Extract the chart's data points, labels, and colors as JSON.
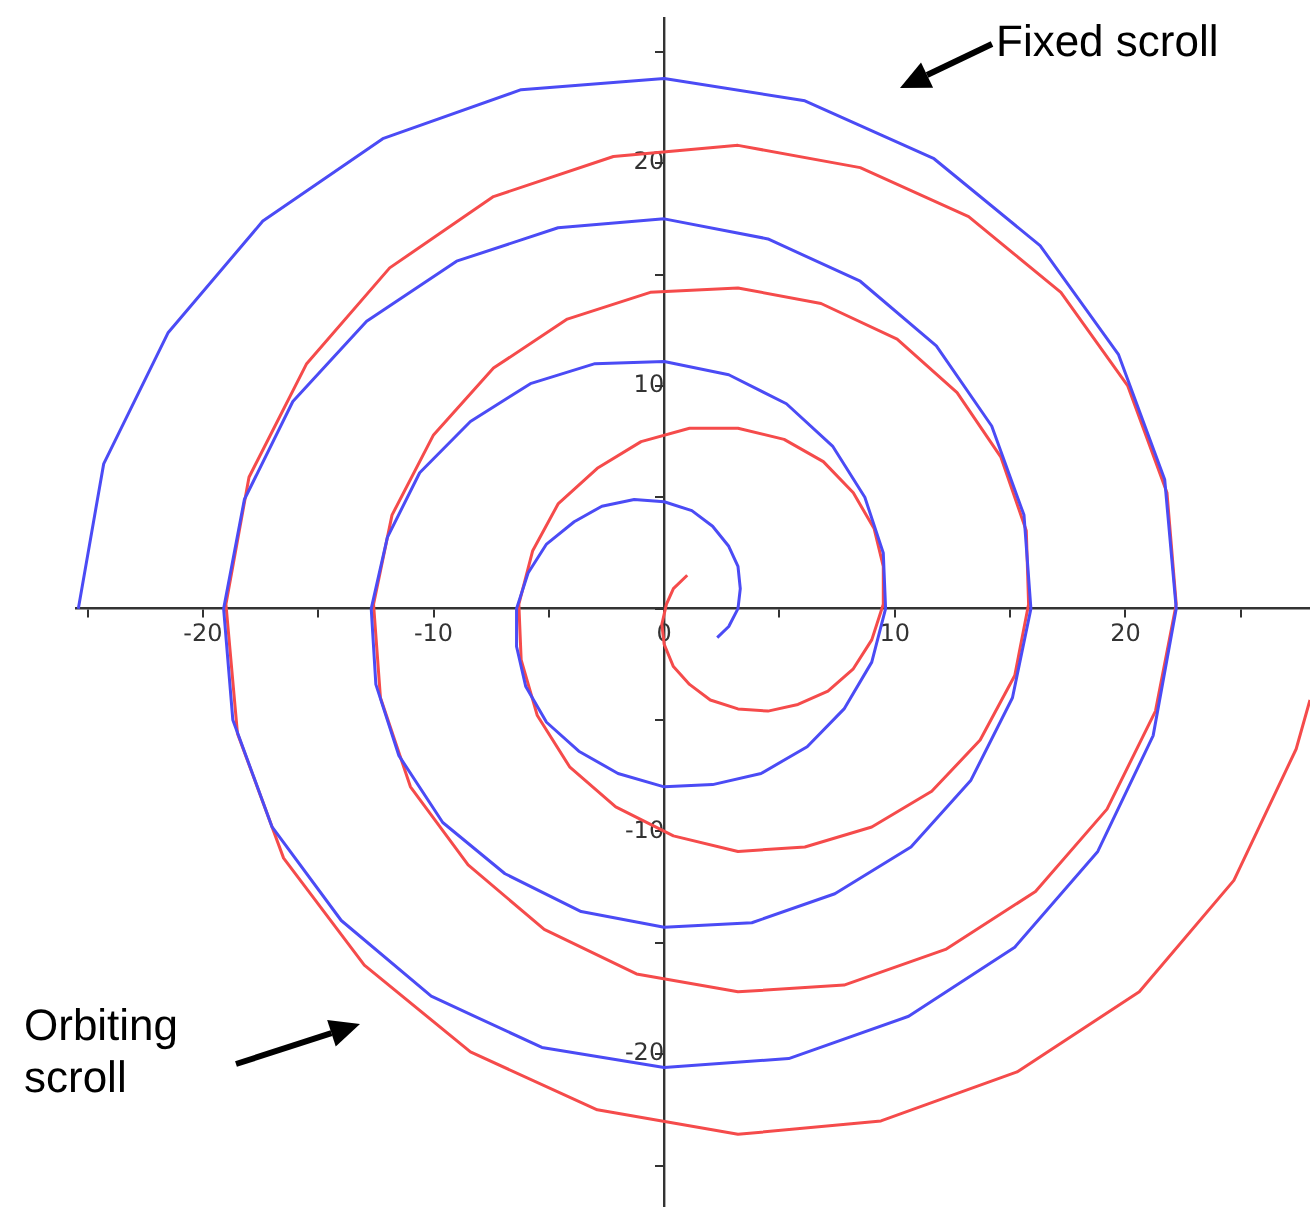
{
  "chart_data": {
    "type": "line",
    "marker": "none",
    "annotations": [
      "Fixed scroll",
      "Orbiting scroll"
    ],
    "xlim": [
      -25.5,
      28
    ],
    "ylim": [
      -26.8,
      26.5
    ],
    "xticks": [
      {
        "value": -25,
        "label": null
      },
      -20,
      {
        "value": -15,
        "label": null
      },
      -10,
      {
        "value": -5,
        "label": null
      },
      0,
      {
        "value": 5,
        "label": null
      },
      10,
      {
        "value": 15,
        "label": null
      },
      20,
      {
        "value": 25,
        "label": null
      }
    ],
    "yticks": [
      {
        "value": -25,
        "label": null
      },
      -20,
      {
        "value": -15,
        "label": null
      },
      -10,
      {
        "value": -5,
        "label": null
      },
      {
        "value": 0,
        "label": null
      },
      {
        "value": 5,
        "label": null
      },
      10,
      {
        "value": 15,
        "label": null
      },
      20,
      {
        "value": 25,
        "label": null
      }
    ],
    "series": [
      {
        "color": "#4b4bf5",
        "x": [
          2.3,
          2.8,
          3.2,
          3.3,
          3.2,
          2.8,
          2.1,
          1.2,
          0,
          -1.3,
          -2.7,
          -3.9,
          -5.1,
          -5.9,
          -6.4,
          -6.4,
          -6.0,
          -5.1,
          -3.7,
          -2.0,
          0,
          2.1,
          4.2,
          6.2,
          7.8,
          9.0,
          9.6,
          9.5,
          8.7,
          7.3,
          5.3,
          2.8,
          0,
          -3.0,
          -5.8,
          -8.4,
          -10.6,
          -12.0,
          -12.7,
          -12.5,
          -11.5,
          -9.6,
          -6.9,
          -3.6,
          0,
          3.8,
          7.4,
          10.7,
          13.3,
          15.1,
          15.9,
          15.6,
          14.2,
          11.8,
          8.5,
          4.5,
          0,
          -4.6,
          -9.0,
          -12.9,
          -16.1,
          -18.2,
          -19.1,
          -18.7,
          -17.0,
          -14.0,
          -10.1,
          -5.3,
          0,
          5.4,
          10.6,
          15.2,
          18.8,
          21.2,
          22.2,
          21.7,
          19.7,
          16.3,
          11.7,
          6.1,
          0,
          -6.2,
          -12.2,
          -17.4,
          -21.5,
          -24.3,
          -25.4
        ],
        "values": [
          -1.3,
          -0.8,
          0,
          0.9,
          1.9,
          2.8,
          3.7,
          4.4,
          4.8,
          4.9,
          4.6,
          3.9,
          2.9,
          1.6,
          0,
          -1.7,
          -3.5,
          -5.1,
          -6.4,
          -7.4,
          -8.0,
          -7.9,
          -7.4,
          -6.2,
          -4.5,
          -2.4,
          0,
          2.5,
          5.0,
          7.3,
          9.2,
          10.5,
          11.1,
          11.0,
          10.1,
          8.4,
          6.1,
          3.2,
          0,
          -3.4,
          -6.6,
          -9.6,
          -11.9,
          -13.6,
          -14.3,
          -14.1,
          -12.8,
          -10.7,
          -7.7,
          -4.0,
          0,
          4.2,
          8.2,
          11.8,
          14.7,
          16.6,
          17.5,
          17.1,
          15.6,
          12.9,
          9.3,
          4.9,
          0,
          -5.0,
          -9.8,
          -14.0,
          -17.4,
          -19.7,
          -20.6,
          -20.2,
          -18.3,
          -15.2,
          -10.9,
          -5.7,
          0,
          5.8,
          11.4,
          16.3,
          20.2,
          22.8,
          23.8,
          23.3,
          21.1,
          17.4,
          12.4,
          6.5,
          0
        ]
      },
      {
        "color": "#f54b4b",
        "x": [
          1.0,
          0.4,
          0.1,
          -0.1,
          0.0,
          0.4,
          1.1,
          2.0,
          3.2,
          4.5,
          5.8,
          7.1,
          8.2,
          9.0,
          9.5,
          9.5,
          9.1,
          8.2,
          6.9,
          5.2,
          3.2,
          1.1,
          -1.0,
          -2.9,
          -4.6,
          -5.7,
          -6.3,
          -6.2,
          -5.5,
          -4.1,
          -2.1,
          0.4,
          3.2,
          6.1,
          9.0,
          11.6,
          13.7,
          15.2,
          15.8,
          15.7,
          14.6,
          12.7,
          10.1,
          6.8,
          3.2,
          -0.6,
          -4.2,
          -7.4,
          -10.0,
          -11.8,
          -12.6,
          -12.3,
          -11.0,
          -8.5,
          -5.2,
          -1.2,
          3.2,
          7.8,
          12.2,
          16.1,
          19.2,
          21.3,
          22.2,
          21.8,
          20.1,
          17.2,
          13.2,
          8.5,
          3.2,
          -2.2,
          -7.4,
          -11.9,
          -15.5,
          -18.0,
          -19.0,
          -18.5,
          -16.5,
          -13.0,
          -8.4,
          -2.9,
          3.2,
          9.4,
          15.3,
          20.6,
          24.7,
          27.4,
          28.0
        ],
        "values": [
          1.5,
          0.9,
          0.2,
          -0.7,
          -1.6,
          -2.6,
          -3.4,
          -4.1,
          -4.5,
          -4.6,
          -4.3,
          -3.7,
          -2.7,
          -1.4,
          0.2,
          1.9,
          3.6,
          5.2,
          6.6,
          7.6,
          8.1,
          8.1,
          7.5,
          6.3,
          4.7,
          2.6,
          0.2,
          -2.3,
          -4.8,
          -7.1,
          -8.9,
          -10.2,
          -10.9,
          -10.7,
          -9.8,
          -8.2,
          -5.9,
          -3.0,
          0.2,
          3.5,
          6.8,
          9.7,
          12.1,
          13.7,
          14.4,
          14.2,
          13.0,
          10.8,
          7.8,
          4.2,
          0.2,
          -4.0,
          -8.0,
          -11.5,
          -14.4,
          -16.4,
          -17.2,
          -16.9,
          -15.3,
          -12.7,
          -9.0,
          -4.6,
          0.2,
          5.2,
          10.0,
          14.2,
          17.6,
          19.8,
          20.8,
          20.3,
          18.5,
          15.3,
          11.0,
          5.9,
          0.2,
          -5.6,
          -11.2,
          -16.0,
          -19.9,
          -22.5,
          -23.6,
          -23.0,
          -20.8,
          -17.2,
          -12.2,
          -6.3,
          -4.1
        ]
      }
    ]
  }
}
